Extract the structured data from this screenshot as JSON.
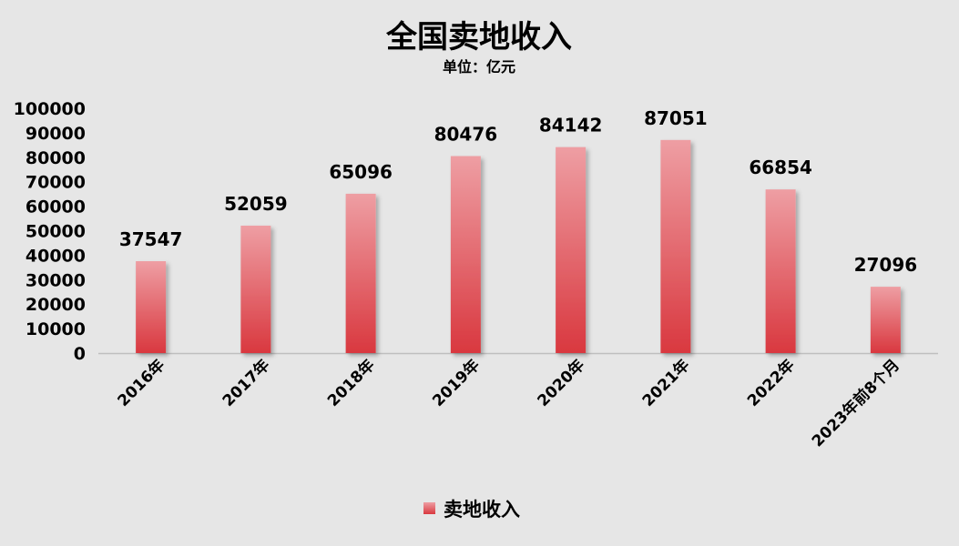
{
  "chart_data": {
    "type": "bar",
    "title": "全国卖地收入",
    "subtitle": "单位：亿元",
    "categories": [
      "2016年",
      "2017年",
      "2018年",
      "2019年",
      "2020年",
      "2021年",
      "2022年",
      "2023年前8个月"
    ],
    "series": [
      {
        "name": "卖地收入",
        "values": [
          37547,
          52059,
          65096,
          80476,
          84142,
          87051,
          66854,
          27096
        ]
      }
    ],
    "ylim": [
      0,
      100000
    ],
    "yticks": [
      0,
      10000,
      20000,
      30000,
      40000,
      50000,
      60000,
      70000,
      80000,
      90000,
      100000
    ],
    "grid": false,
    "legend_position": "bottom",
    "colors": {
      "bar_top": "#ee9ea3",
      "bar_bottom": "#d9383f",
      "background": "#e6e6e6",
      "axis": "#bfbfbf"
    }
  }
}
